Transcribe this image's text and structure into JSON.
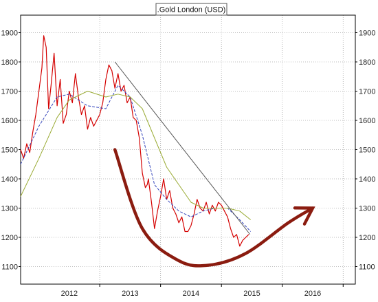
{
  "chart_data": {
    "type": "line",
    "title": ".Gold London (USD)",
    "xlabel": "",
    "ylabel": "",
    "x_ticks": [
      "2012",
      "2013",
      "2014",
      "2015",
      "2016"
    ],
    "y_ticks": [
      1100,
      1200,
      1300,
      1400,
      1500,
      1600,
      1700,
      1800,
      1900
    ],
    "xlim": [
      2011.2,
      2016.7
    ],
    "ylim": [
      1040,
      1960
    ],
    "grid": true,
    "legend": "none",
    "colors": {
      "price": "#d40000",
      "ma_short": "#3344bb",
      "ma_long": "#99aa33",
      "trendline": "#555555",
      "arrow": "#8b1c10",
      "grid": "#aaaaaa"
    },
    "series": [
      {
        "key": "price",
        "x": [
          2011.2,
          2011.25,
          2011.3,
          2011.35,
          2011.4,
          2011.45,
          2011.5,
          2011.55,
          2011.58,
          2011.62,
          2011.66,
          2011.7,
          2011.75,
          2011.8,
          2011.85,
          2011.9,
          2011.95,
          2012.0,
          2012.05,
          2012.1,
          2012.15,
          2012.2,
          2012.25,
          2012.3,
          2012.35,
          2012.4,
          2012.45,
          2012.5,
          2012.55,
          2012.6,
          2012.65,
          2012.7,
          2012.75,
          2012.8,
          2012.85,
          2012.9,
          2012.95,
          2013.0,
          2013.05,
          2013.1,
          2013.15,
          2013.2,
          2013.25,
          2013.28,
          2013.3,
          2013.35,
          2013.4,
          2013.45,
          2013.5,
          2013.55,
          2013.6,
          2013.65,
          2013.7,
          2013.75,
          2013.8,
          2013.85,
          2013.9,
          2013.95,
          2014.0,
          2014.05,
          2014.1,
          2014.15,
          2014.2,
          2014.25,
          2014.3,
          2014.35,
          2014.4,
          2014.45,
          2014.5,
          2014.55,
          2014.6,
          2014.65,
          2014.7,
          2014.75,
          2014.8,
          2014.85,
          2014.9,
          2014.95
        ],
        "values": [
          1500,
          1470,
          1520,
          1490,
          1560,
          1620,
          1700,
          1780,
          1890,
          1850,
          1640,
          1720,
          1830,
          1650,
          1740,
          1590,
          1620,
          1700,
          1660,
          1760,
          1680,
          1620,
          1650,
          1570,
          1610,
          1580,
          1600,
          1620,
          1660,
          1740,
          1790,
          1770,
          1710,
          1760,
          1700,
          1720,
          1660,
          1680,
          1610,
          1600,
          1540,
          1420,
          1370,
          1380,
          1400,
          1320,
          1230,
          1290,
          1340,
          1400,
          1330,
          1360,
          1300,
          1280,
          1250,
          1270,
          1220,
          1220,
          1240,
          1280,
          1330,
          1300,
          1290,
          1320,
          1280,
          1310,
          1290,
          1320,
          1310,
          1290,
          1270,
          1230,
          1200,
          1210,
          1170,
          1190,
          1200,
          1210
        ]
      },
      {
        "key": "ma_short",
        "x": [
          2011.2,
          2011.5,
          2011.8,
          2012.0,
          2012.3,
          2012.6,
          2012.8,
          2013.0,
          2013.2,
          2013.4,
          2013.6,
          2013.8,
          2014.0,
          2014.2,
          2014.4,
          2014.6,
          2014.8,
          2014.98
        ],
        "values": [
          1450,
          1580,
          1680,
          1690,
          1650,
          1640,
          1720,
          1680,
          1550,
          1380,
          1330,
          1290,
          1270,
          1290,
          1300,
          1300,
          1260,
          1220
        ]
      },
      {
        "key": "ma_long",
        "x": [
          2011.2,
          2011.5,
          2011.8,
          2012.0,
          2012.3,
          2012.6,
          2012.8,
          2013.0,
          2013.2,
          2013.4,
          2013.6,
          2013.8,
          2014.0,
          2014.2,
          2014.4,
          2014.6,
          2014.8,
          2014.98
        ],
        "values": [
          1340,
          1470,
          1610,
          1670,
          1700,
          1680,
          1690,
          1680,
          1640,
          1540,
          1440,
          1380,
          1320,
          1300,
          1300,
          1300,
          1290,
          1260
        ]
      }
    ],
    "trendline": {
      "x": [
        2012.75,
        2014.97
      ],
      "values": [
        1800,
        1210
      ]
    },
    "arrow_path": {
      "x": [
        2012.75,
        2013.2,
        2013.8,
        2014.3,
        2014.9,
        2015.6,
        2016.0
      ],
      "values": [
        1500,
        1230,
        1120,
        1105,
        1145,
        1250,
        1300
      ]
    }
  }
}
